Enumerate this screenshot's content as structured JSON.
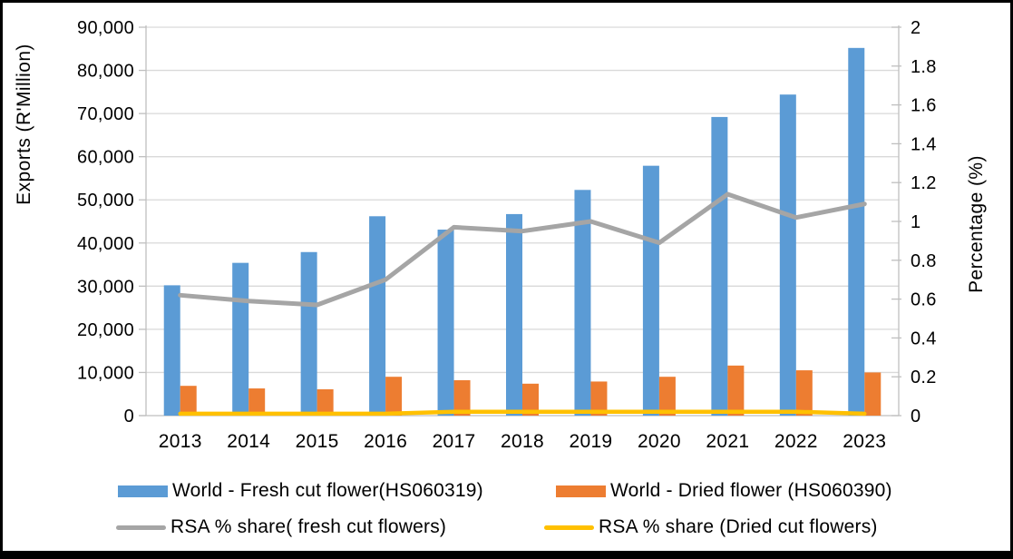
{
  "frame": {
    "background": "#FFFFFF",
    "border_color": "#000000"
  },
  "chart_data": {
    "type": "combo-bar-line",
    "categories": [
      "2013",
      "2014",
      "2015",
      "2016",
      "2017",
      "2018",
      "2019",
      "2020",
      "2021",
      "2022",
      "2023"
    ],
    "series": [
      {
        "name": "World - Fresh cut flower(HS060319)",
        "type": "bar",
        "axis": "left",
        "color": "#5B9BD5",
        "values": [
          30200,
          35400,
          37900,
          46200,
          43100,
          46700,
          52300,
          57900,
          69200,
          74400,
          85200
        ]
      },
      {
        "name": "World - Dried flower (HS060390)",
        "type": "bar",
        "axis": "left",
        "color": "#ED7D31",
        "values": [
          6900,
          6300,
          6100,
          9000,
          8200,
          7400,
          7900,
          9000,
          11600,
          10500,
          10000
        ]
      },
      {
        "name": "RSA % share( fresh cut flowers)",
        "type": "line",
        "axis": "right",
        "color": "#A5A5A5",
        "values": [
          0.62,
          0.59,
          0.57,
          0.7,
          0.97,
          0.95,
          1.0,
          0.89,
          1.14,
          1.02,
          1.09
        ]
      },
      {
        "name": "RSA % share (Dried cut flowers)",
        "type": "line",
        "axis": "right",
        "color": "#FFC000",
        "values": [
          0.01,
          0.01,
          0.01,
          0.01,
          0.02,
          0.02,
          0.02,
          0.02,
          0.02,
          0.02,
          0.01
        ]
      }
    ],
    "left_axis": {
      "title": "Exports (R'Million)",
      "min": 0,
      "max": 90000,
      "step": 10000,
      "tick_labels_top_to_bottom": [
        "90,000",
        "80,000",
        "70,000",
        "60,000",
        "50,000",
        "40,000",
        "30,000",
        "20,000",
        "10,000",
        "0"
      ]
    },
    "right_axis": {
      "title": "Percentage (%)",
      "min": 0,
      "max": 2,
      "step": 0.2,
      "tick_labels_top_to_bottom": [
        "2",
        "1.8",
        "1.6",
        "1.4",
        "1.2",
        "1",
        "0.8",
        "0.6",
        "0.4",
        "0.2",
        "0"
      ]
    },
    "gridlines": true,
    "legend_position": "bottom",
    "style": {
      "gridline_color": "#D9D9D9",
      "axis_color": "#BFBFBF",
      "text_color": "#000000"
    }
  }
}
